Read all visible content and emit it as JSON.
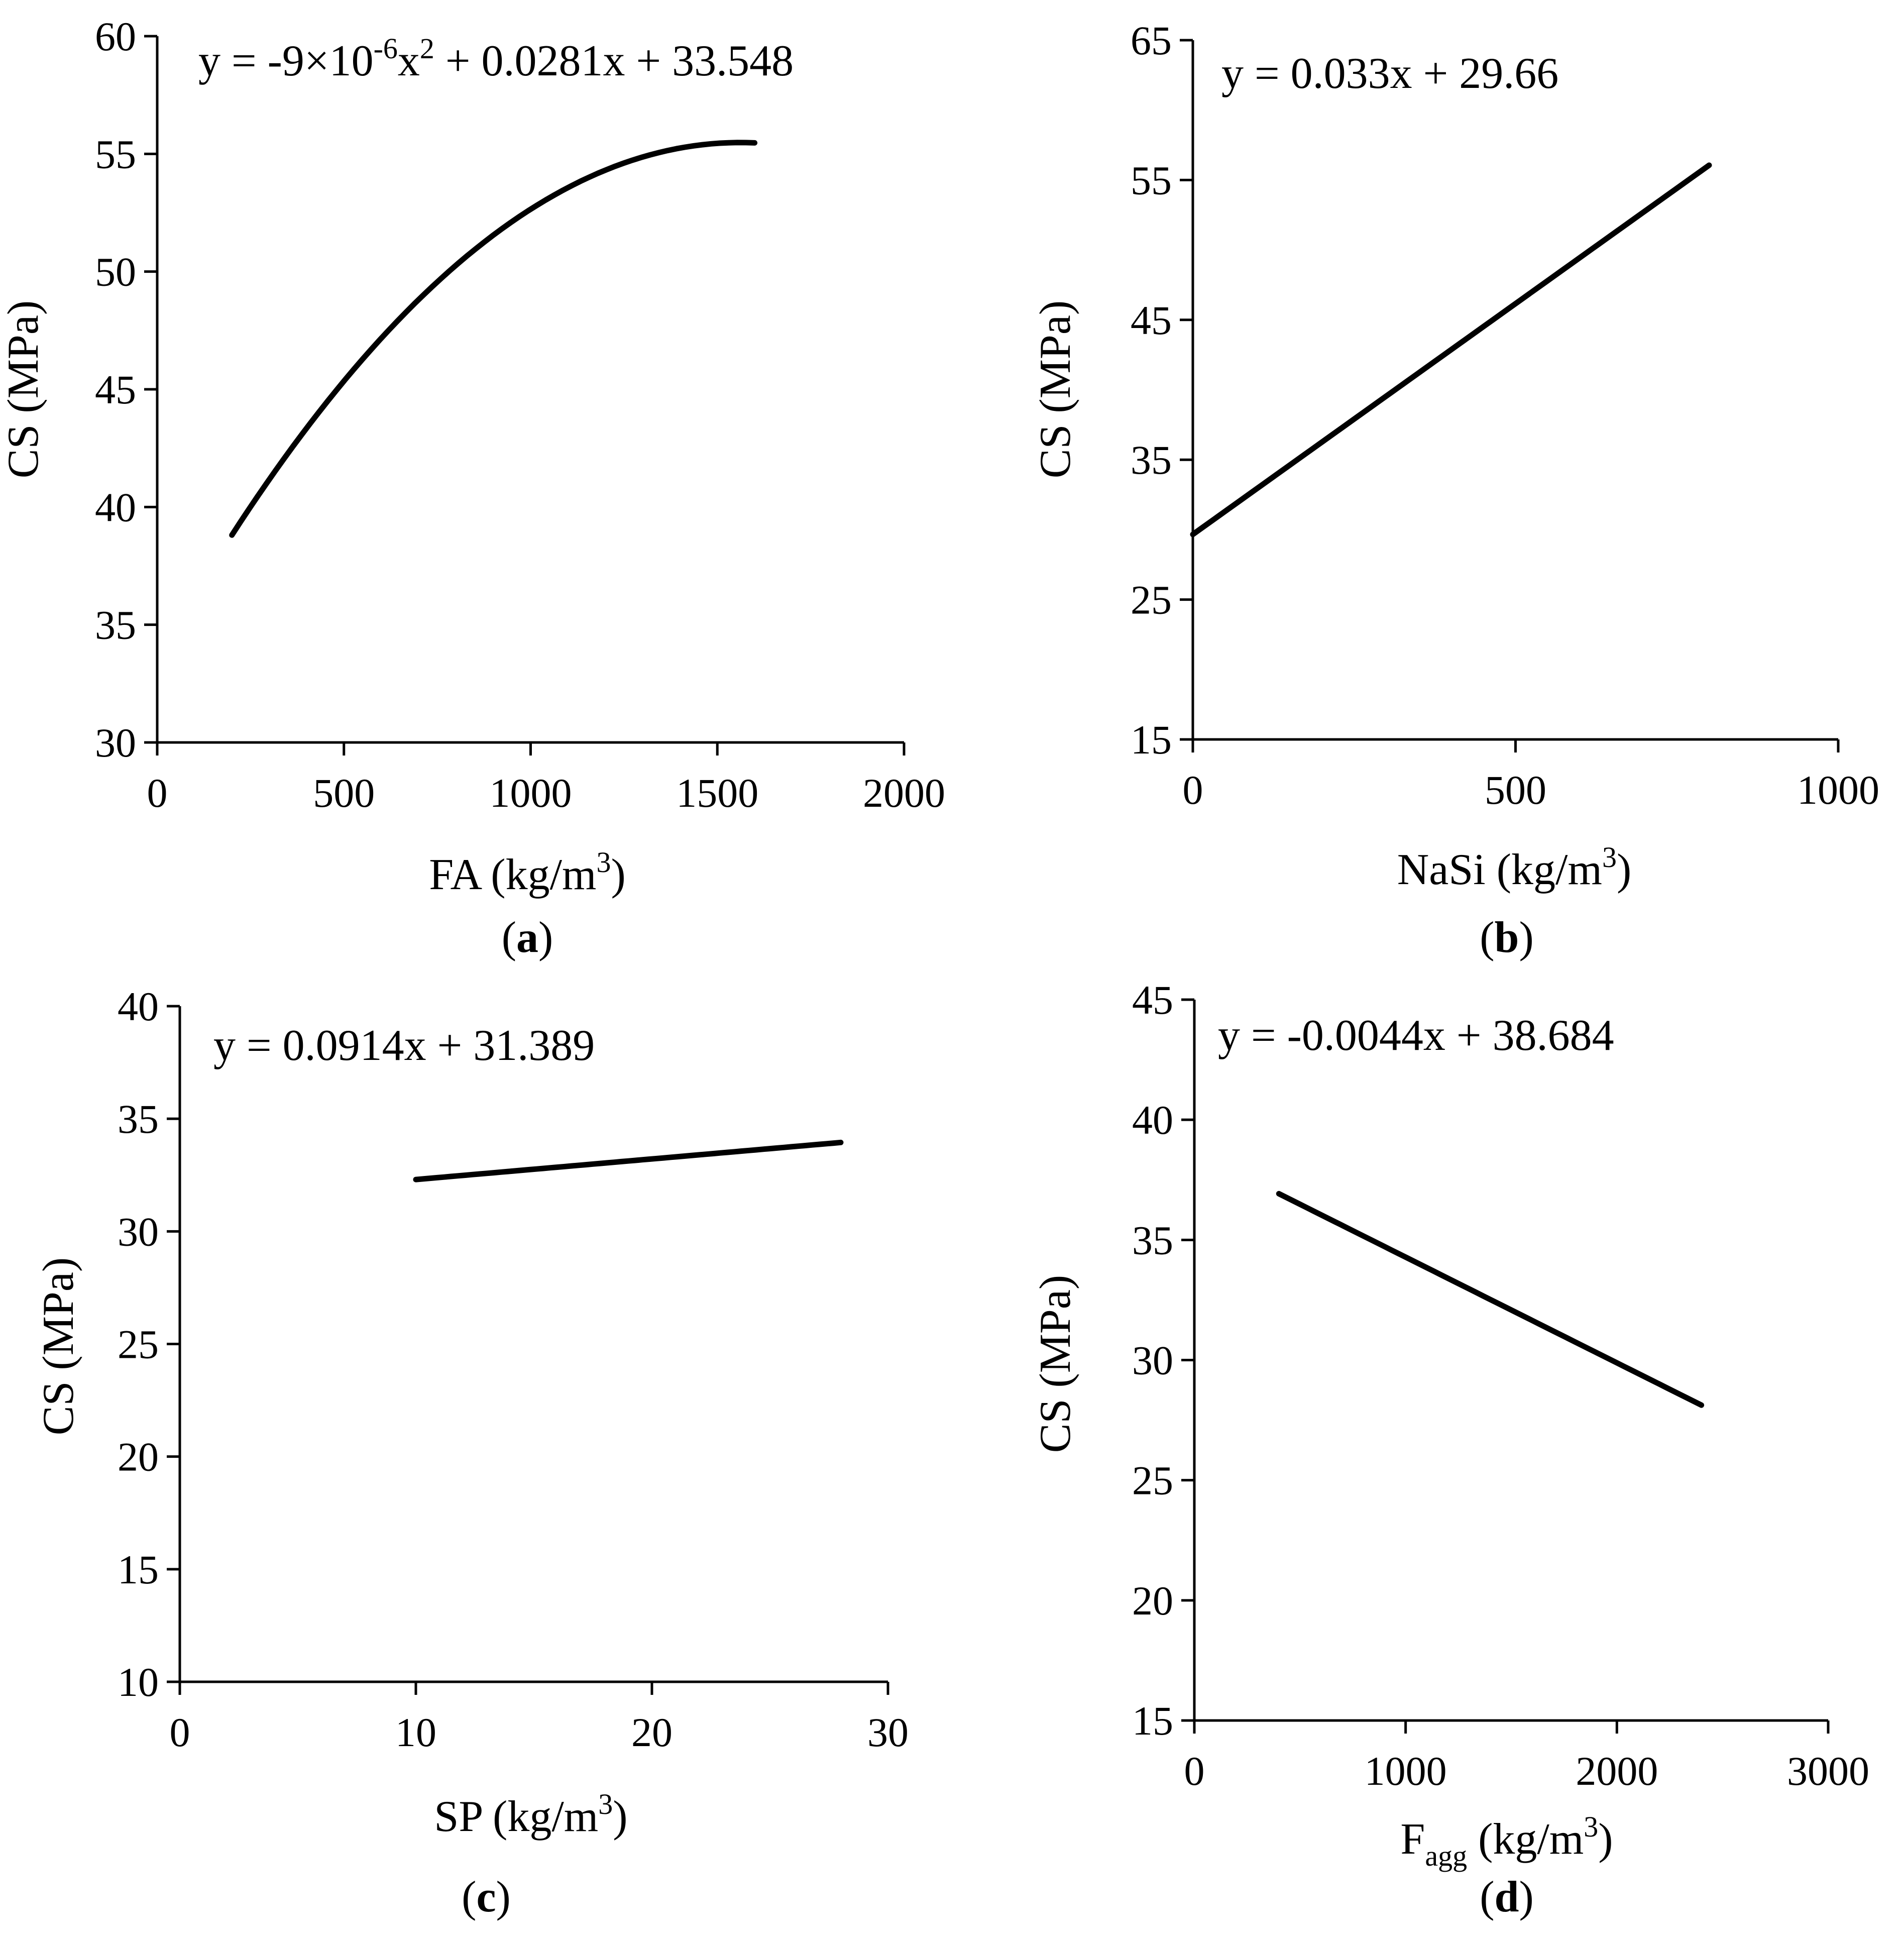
{
  "figure_type": "multi-panel scatter trendline figure",
  "colors": {
    "line": "#000000",
    "axis": "#000000",
    "background": "#ffffff"
  },
  "chart_data": [
    {
      "id": "a",
      "type": "line",
      "panel_label": "a",
      "title": "",
      "equation": {
        "prefix": "y = -9×10",
        "exp": "-6",
        "mid": "x",
        "exp2": "2",
        "suffix": " + 0.0281x + 33.548"
      },
      "xlabel": {
        "base": "FA (kg/m",
        "exp": "3",
        "close": ")"
      },
      "ylabel": "CS (MPa)",
      "xlim": [
        0,
        2000
      ],
      "ylim": [
        30,
        60
      ],
      "xticks": [
        "0",
        "500",
        "1000",
        "1500",
        "2000"
      ],
      "yticks": [
        "30",
        "35",
        "40",
        "45",
        "50",
        "55",
        "60"
      ],
      "grid": false,
      "model": {
        "kind": "quadratic",
        "a": -9e-06,
        "b": 0.0281,
        "c": 33.548
      },
      "x_range": [
        200,
        1600
      ],
      "series": [
        {
          "name": "trend",
          "x": [
            200,
            300,
            400,
            500,
            600,
            700,
            800,
            900,
            1000,
            1100,
            1200,
            1300,
            1400,
            1500,
            1600
          ],
          "y": [
            38.8,
            41.2,
            43.4,
            45.3,
            47.1,
            48.7,
            50.3,
            51.3,
            52.6,
            53.5,
            54.2,
            54.7,
            55.1,
            55.0,
            55.0
          ]
        }
      ]
    },
    {
      "id": "b",
      "type": "line",
      "panel_label": "b",
      "title": "",
      "equation": {
        "prefix": "y = 0.033x + 29.66"
      },
      "xlabel": {
        "base": "NaSi (kg/m",
        "exp": "3",
        "close": ")"
      },
      "ylabel": "CS (MPa)",
      "xlim": [
        0,
        1000
      ],
      "ylim": [
        15,
        65
      ],
      "xticks": [
        "0",
        "500",
        "1000"
      ],
      "yticks": [
        "15",
        "25",
        "35",
        "45",
        "55",
        "65"
      ],
      "grid": false,
      "model": {
        "kind": "linear",
        "m": 0.033,
        "c": 29.66
      },
      "x_range": [
        0,
        800
      ],
      "series": [
        {
          "name": "trend",
          "x": [
            0,
            800
          ],
          "y": [
            29.66,
            56.06
          ]
        }
      ]
    },
    {
      "id": "c",
      "type": "line",
      "panel_label": "c",
      "title": "",
      "equation": {
        "prefix": "y = 0.0914x + 31.389"
      },
      "xlabel": {
        "base": "SP (kg/m",
        "exp": "3",
        "close": ")"
      },
      "ylabel": "CS (MPa)",
      "xlim": [
        0,
        30
      ],
      "ylim": [
        10,
        40
      ],
      "xticks": [
        "0",
        "10",
        "20",
        "30"
      ],
      "yticks": [
        "10",
        "15",
        "20",
        "25",
        "30",
        "35",
        "40"
      ],
      "grid": false,
      "model": {
        "kind": "linear",
        "m": 0.0914,
        "c": 31.389
      },
      "x_range": [
        10,
        28
      ],
      "series": [
        {
          "name": "trend",
          "x": [
            10,
            28
          ],
          "y": [
            32.3,
            33.95
          ]
        }
      ]
    },
    {
      "id": "d",
      "type": "line",
      "panel_label": "d",
      "title": "",
      "equation": {
        "prefix": "y = -0.0044x + 38.684"
      },
      "xlabel": {
        "base": "F",
        "sub": "agg",
        "mid": " (kg/m",
        "exp": "3",
        "close": ")"
      },
      "ylabel": "CS (MPa)",
      "xlim": [
        0,
        3000
      ],
      "ylim": [
        15,
        45
      ],
      "xticks": [
        "0",
        "1000",
        "2000",
        "3000"
      ],
      "yticks": [
        "15",
        "20",
        "25",
        "30",
        "35",
        "40",
        "45"
      ],
      "grid": false,
      "model": {
        "kind": "linear",
        "m": -0.0044,
        "c": 38.684
      },
      "x_range": [
        400,
        2400
      ],
      "series": [
        {
          "name": "trend",
          "x": [
            400,
            2400
          ],
          "y": [
            36.92,
            28.12
          ]
        }
      ]
    }
  ]
}
